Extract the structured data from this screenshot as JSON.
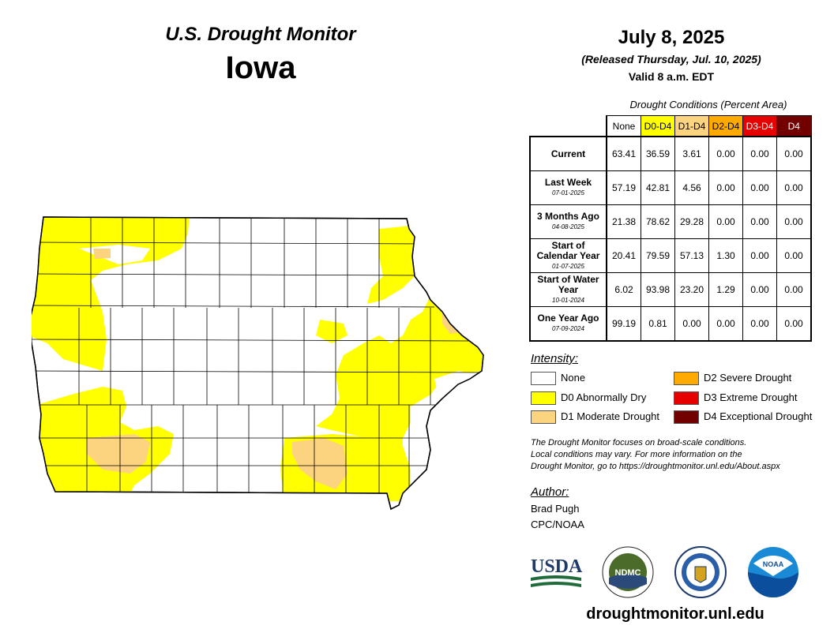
{
  "header": {
    "title": "U.S. Drought Monitor",
    "state": "Iowa",
    "date": "July 8, 2025",
    "released": "(Released Thursday, Jul. 10, 2025)",
    "valid": "Valid 8 a.m. EDT"
  },
  "table": {
    "caption": "Drought Conditions (Percent Area)",
    "columns": [
      {
        "label": "None",
        "color": "#ffffff",
        "text_color": "#000000"
      },
      {
        "label": "D0-D4",
        "color": "#ffff00",
        "text_color": "#000000"
      },
      {
        "label": "D1-D4",
        "color": "#fcd37f",
        "text_color": "#000000"
      },
      {
        "label": "D2-D4",
        "color": "#ffaa00",
        "text_color": "#000000"
      },
      {
        "label": "D3-D4",
        "color": "#e60000",
        "text_color": "#ffffff"
      },
      {
        "label": "D4",
        "color": "#730000",
        "text_color": "#ffffff"
      }
    ],
    "rows": [
      {
        "label": "Current",
        "sublabel": "",
        "values": [
          "63.41",
          "36.59",
          "3.61",
          "0.00",
          "0.00",
          "0.00"
        ]
      },
      {
        "label": "Last Week",
        "sublabel": "07-01-2025",
        "values": [
          "57.19",
          "42.81",
          "4.56",
          "0.00",
          "0.00",
          "0.00"
        ]
      },
      {
        "label": "3 Months Ago",
        "sublabel": "04-08-2025",
        "values": [
          "21.38",
          "78.62",
          "29.28",
          "0.00",
          "0.00",
          "0.00"
        ]
      },
      {
        "label": "Start of Calendar Year",
        "sublabel": "01-07-2025",
        "values": [
          "20.41",
          "79.59",
          "57.13",
          "1.30",
          "0.00",
          "0.00"
        ]
      },
      {
        "label": "Start of Water Year",
        "sublabel": "10-01-2024",
        "values": [
          "6.02",
          "93.98",
          "23.20",
          "1.29",
          "0.00",
          "0.00"
        ]
      },
      {
        "label": "One Year Ago",
        "sublabel": "07-09-2024",
        "values": [
          "99.19",
          "0.81",
          "0.00",
          "0.00",
          "0.00",
          "0.00"
        ]
      }
    ]
  },
  "legend": {
    "title": "Intensity:",
    "items": [
      {
        "label": "None",
        "color": "#ffffff"
      },
      {
        "label": "D0 Abnormally Dry",
        "color": "#ffff00"
      },
      {
        "label": "D1 Moderate Drought",
        "color": "#fcd37f"
      },
      {
        "label": "D2 Severe Drought",
        "color": "#ffaa00"
      },
      {
        "label": "D3 Extreme Drought",
        "color": "#e60000"
      },
      {
        "label": "D4 Exceptional Drought",
        "color": "#730000"
      }
    ]
  },
  "disclaimer": {
    "line1": "The Drought Monitor focuses on broad-scale conditions.",
    "line2": "Local conditions may vary. For more information on the",
    "line3": "Drought Monitor, go to https://droughtmonitor.unl.edu/About.aspx"
  },
  "author": {
    "title": "Author:",
    "name": "Brad Pugh",
    "org": "CPC/NOAA"
  },
  "logos": {
    "usda": "USDA",
    "ndmc": "NDMC",
    "noaa": "NOAA"
  },
  "footer": {
    "url": "droughtmonitor.unl.edu"
  }
}
